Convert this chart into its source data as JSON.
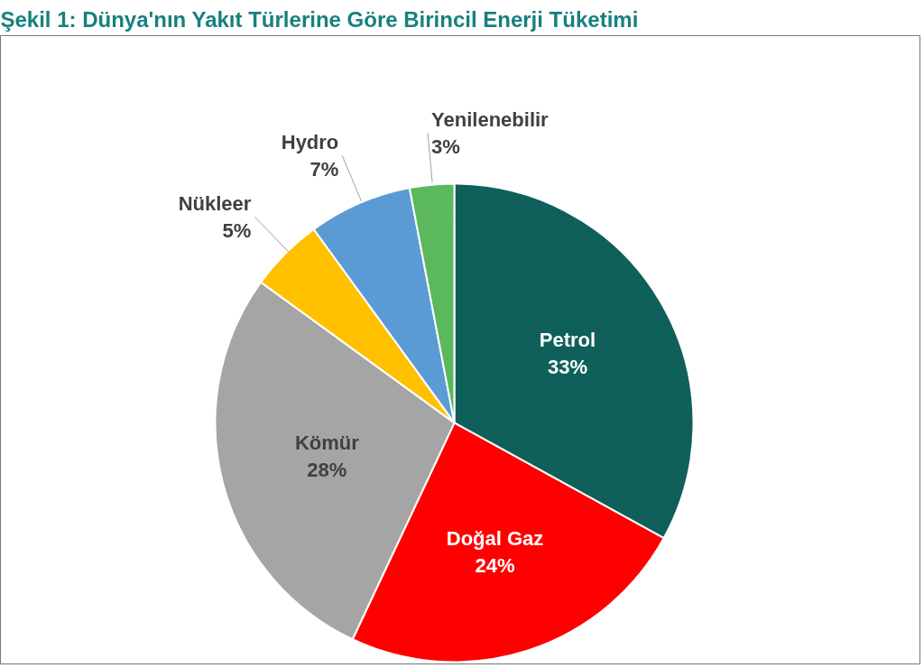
{
  "chart_data": {
    "type": "pie",
    "title": "Şekil 1: Dünya'nın Yakıt Türlerine Göre Birincil Enerji Tüketimi",
    "categories": [
      "Petrol",
      "Doğal Gaz",
      "Kömür",
      "Nükleer",
      "Hydro",
      "Yenilenebilir"
    ],
    "values": [
      33,
      24,
      28,
      5,
      7,
      3
    ],
    "value_labels": [
      "33%",
      "24%",
      "28%",
      "5%",
      "7%",
      "3%"
    ],
    "colors": [
      "#0f5f5b",
      "#ff0000",
      "#a5a5a5",
      "#ffc000",
      "#5b9bd5",
      "#5cb85c"
    ],
    "legend": false
  }
}
